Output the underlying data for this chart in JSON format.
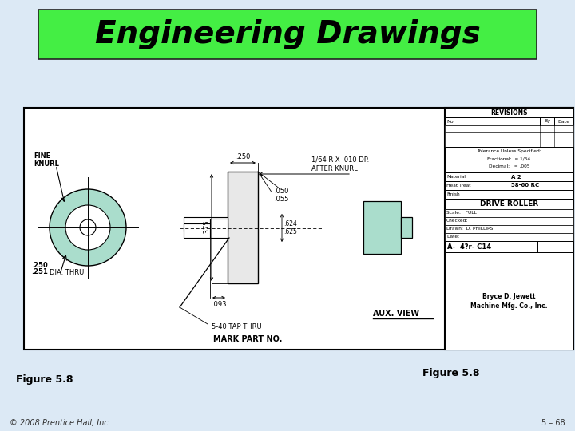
{
  "bg_color": "#dce9f5",
  "title_text": "Engineering Drawings",
  "title_bg": "#44ee44",
  "title_text_color": "#000000",
  "figure_label": "Figure 5.8",
  "copyright_text": "© 2008 Prentice Hall, Inc.",
  "slide_number": "5 – 68",
  "drawing_bg": "#ffffff",
  "drawing_border_color": "#000000",
  "title_font_size": 28,
  "knurl_label": "FINE\nKNURL",
  "dia_label": ".250\n.251",
  "dia_suffix": "DIA. THRU",
  "dim_375": ".375",
  "dim_250": ".250",
  "dim_050": ".050",
  "dim_055": ".055",
  "dim_093": ".093",
  "dim_624625": ".624\n.625",
  "knurl_note": "1/64 R X .010 DP.\nAFTER KNURL",
  "tap_label": "5-40 TAP THRU",
  "aux_label": "AUX. VIEW",
  "mark_label": "MARK PART NO.",
  "tb_revisions": "REVISIONS",
  "tb_no": "No.",
  "tb_by": "By",
  "tb_date": "Date",
  "tb_tolerance": "Tolerance Unless Specified:",
  "tb_fractional": "Fractional:  = 1/64",
  "tb_decimal": "Decimal:   = .005",
  "tb_material_label": "Material",
  "tb_material_val": "A 2",
  "tb_heat_label": "Heat Treat",
  "tb_heat_val": "58-60 RC",
  "tb_finish_label": "Finish",
  "tb_title_val": "DRIVE ROLLER",
  "tb_scale_label": "Scale:   FULL",
  "tb_checked_label": "Checked:",
  "tb_drawn_label": "Drawn:  D. PHILLIPS",
  "tb_date_label": "Date:",
  "tb_part_no": "A-  4?r- C14",
  "tb_company1": "Bryce D. Jewett",
  "tb_company2": "Machine Mfg. Co., Inc.",
  "circle_color": "#aaddcc",
  "aux_view_color": "#aaddcc"
}
